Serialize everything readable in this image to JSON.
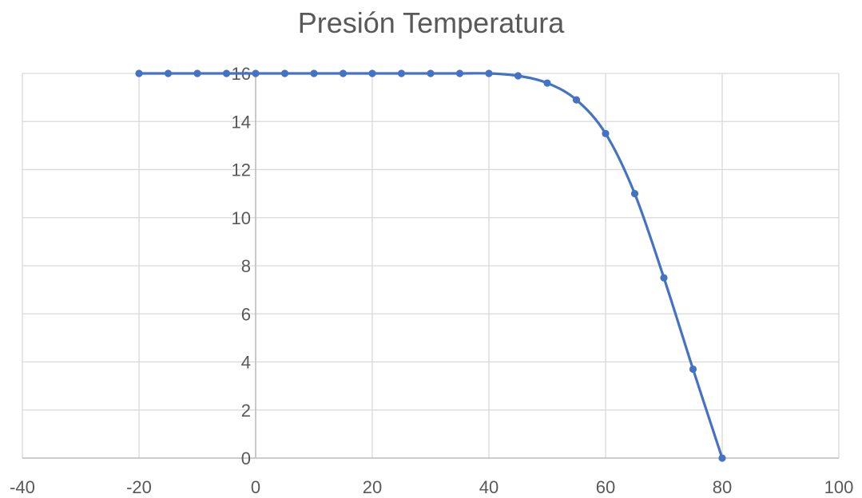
{
  "chart_data": {
    "type": "scatter",
    "title": "Presión Temperatura",
    "xlabel": "",
    "ylabel": "",
    "xlim": [
      -40,
      100
    ],
    "ylim": [
      0,
      16
    ],
    "x_ticks": [
      -40,
      -20,
      0,
      20,
      40,
      60,
      80,
      100
    ],
    "y_ticks": [
      0,
      2,
      4,
      6,
      8,
      10,
      12,
      14,
      16
    ],
    "grid": true,
    "smooth_line": true,
    "legend": "none",
    "series": [
      {
        "color": "#4472C4",
        "x": [
          -20,
          -15,
          -10,
          -5,
          0,
          5,
          10,
          15,
          20,
          25,
          30,
          35,
          40,
          45,
          50,
          55,
          60,
          65,
          70,
          75,
          80
        ],
        "y": [
          16,
          16,
          16,
          16,
          16,
          16,
          16,
          16,
          16,
          16,
          16,
          16,
          16,
          15.9,
          15.6,
          14.9,
          13.5,
          11.0,
          7.5,
          3.7,
          0
        ]
      }
    ]
  }
}
